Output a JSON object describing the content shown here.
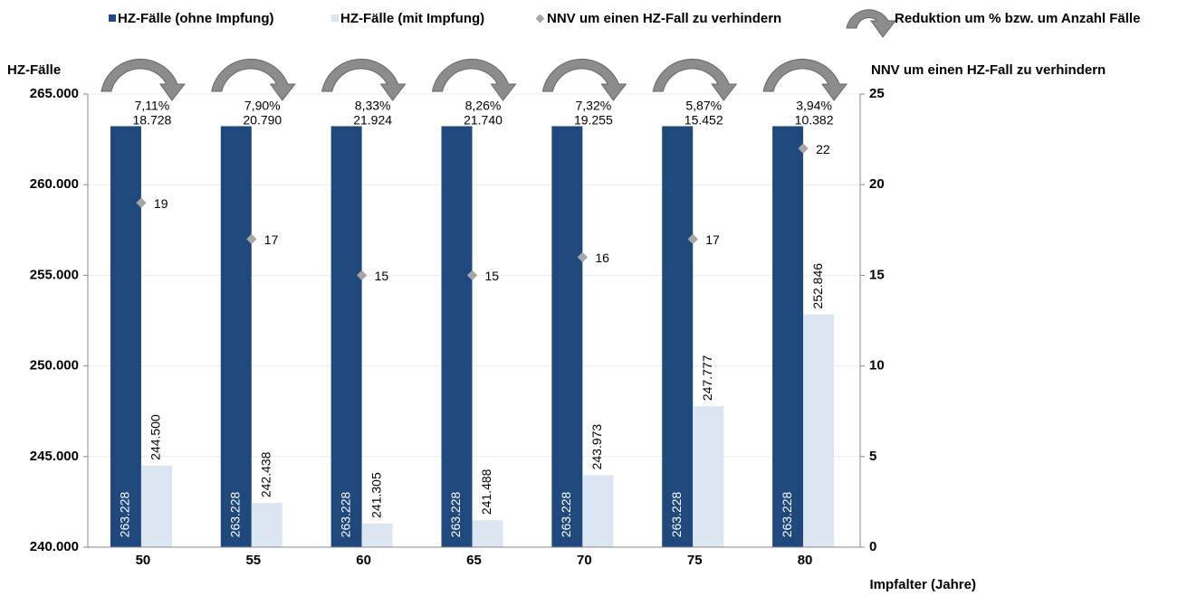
{
  "chart_data": {
    "type": "bar",
    "categories": [
      "50",
      "55",
      "60",
      "65",
      "70",
      "75",
      "80"
    ],
    "series": [
      {
        "name": "HZ-Fälle (ohne Impfung)",
        "color": "#1f497d",
        "values": [
          263228,
          263228,
          263228,
          263228,
          263228,
          263228,
          263228
        ],
        "value_labels": [
          "263.228",
          "263.228",
          "263.228",
          "263.228",
          "263.228",
          "263.228",
          "263.228"
        ]
      },
      {
        "name": "HZ-Fälle (mit Impfung)",
        "color": "#dce6f2",
        "values": [
          244500,
          242438,
          241305,
          241488,
          243973,
          247777,
          252846
        ],
        "value_labels": [
          "244.500",
          "242.438",
          "241.305",
          "241.488",
          "243.973",
          "247.777",
          "252.846"
        ]
      },
      {
        "name": "NNV um einen HZ-Fall zu verhindern",
        "color": "#a6a6a6",
        "axis": "y2",
        "values": [
          19,
          17,
          15,
          15,
          16,
          17,
          22
        ]
      }
    ],
    "reduction": {
      "name": "Reduktion um % bzw. um Anzahl Fälle",
      "color": "#8c8c8c",
      "percent": [
        7.11,
        7.9,
        8.33,
        8.26,
        7.32,
        5.87,
        3.94
      ],
      "percent_labels": [
        "7,11%",
        "7,90%",
        "8,33%",
        "8,26%",
        "7,32%",
        "5,87%",
        "3,94%"
      ],
      "cases": [
        18728,
        20790,
        21924,
        21740,
        19255,
        15452,
        10382
      ],
      "case_labels": [
        "18.728",
        "20.790",
        "21.924",
        "21.740",
        "19.255",
        "15.452",
        "10.382"
      ]
    },
    "y_label": "HZ-Fälle",
    "y2_label": "NNV um einen HZ-Fall zu verhindern",
    "x_label": "Impfalter (Jahre)",
    "ylim": [
      240000,
      265000
    ],
    "yticks": [
      {
        "value": 240000,
        "label": "240.000"
      },
      {
        "value": 245000,
        "label": "245.000"
      },
      {
        "value": 250000,
        "label": "250.000"
      },
      {
        "value": 255000,
        "label": "255.000"
      },
      {
        "value": 260000,
        "label": "260.000"
      },
      {
        "value": 265000,
        "label": "265.000"
      }
    ],
    "y2lim": [
      0,
      25
    ],
    "y2ticks": [
      0,
      5,
      10,
      15,
      20,
      25
    ],
    "grid": true
  }
}
